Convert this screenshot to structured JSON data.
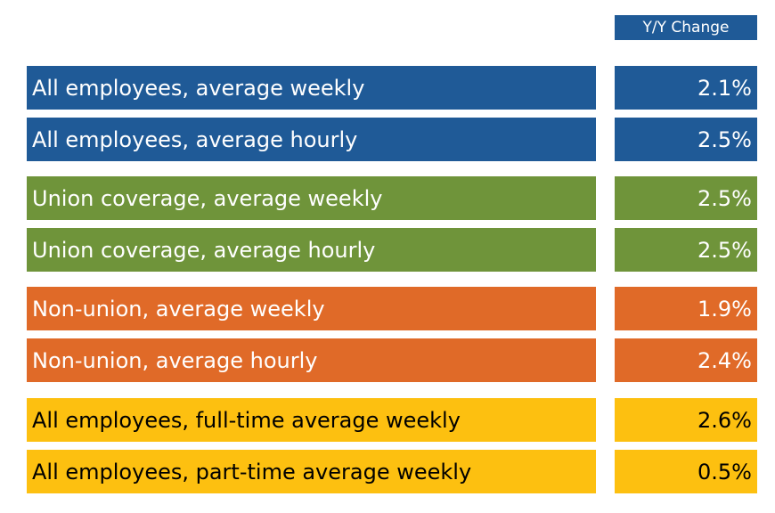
{
  "header": {
    "label": "Y/Y Change"
  },
  "colors": {
    "all_employees": "#1f5a97",
    "union": "#6f943a",
    "non_union": "#e06a28",
    "full_part_time": "#fdc010"
  },
  "chart_data": {
    "type": "table",
    "columns": [
      "",
      "Y/Y Change"
    ],
    "rows": [
      {
        "label": "All employees, average weekly",
        "value": "2.1%",
        "group": "all_employees"
      },
      {
        "label": "All employees, average hourly",
        "value": "2.5%",
        "group": "all_employees"
      },
      {
        "label": "Union coverage, average weekly",
        "value": "2.5%",
        "group": "union"
      },
      {
        "label": "Union coverage, average hourly",
        "value": "2.5%",
        "group": "union"
      },
      {
        "label": "Non-union, average weekly",
        "value": "1.9%",
        "group": "non_union"
      },
      {
        "label": "Non-union, average hourly",
        "value": "2.4%",
        "group": "non_union"
      },
      {
        "label": "All employees, full-time average weekly",
        "value": "2.6%",
        "group": "full_part_time"
      },
      {
        "label": "All employees, part-time average weekly",
        "value": "0.5%",
        "group": "full_part_time"
      }
    ]
  }
}
